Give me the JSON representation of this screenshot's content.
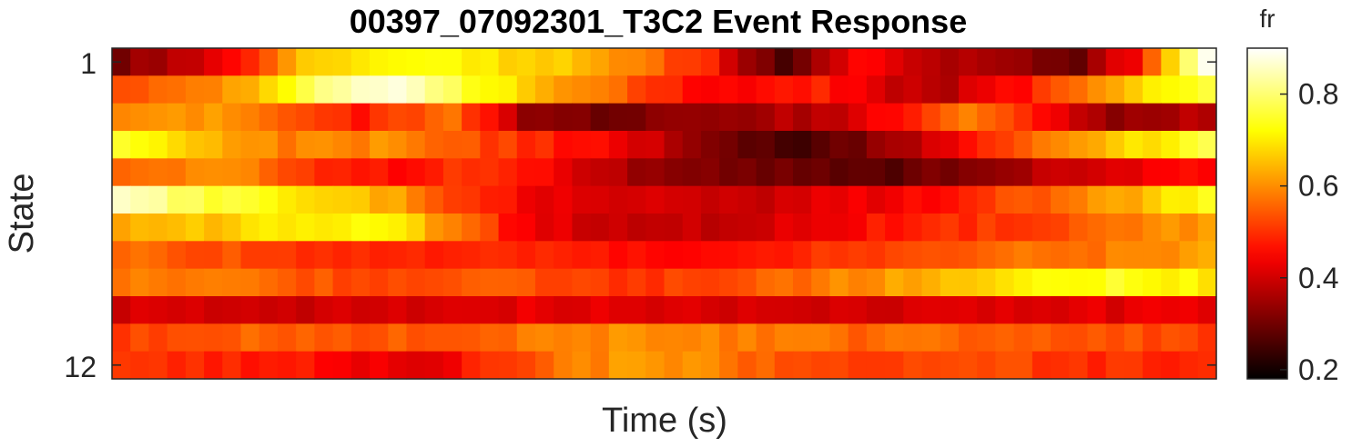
{
  "chart_data": {
    "type": "heatmap",
    "title": "00397_07092301_T3C2 Event Response",
    "xlabel": "Time (s)",
    "ylabel": "State",
    "y_tick_labels": [
      "1",
      "12"
    ],
    "x_tick_labels": [],
    "rows": 12,
    "columns": 60,
    "colormap": "hot",
    "colorbar": {
      "label": "fr",
      "ticks": [
        "0.2",
        "0.4",
        "0.6",
        "0.8"
      ],
      "tick_values": [
        0.2,
        0.4,
        0.6,
        0.8
      ],
      "range": [
        0.18,
        0.9
      ]
    },
    "row_profiles": [
      [
        [
          0,
          0.32
        ],
        [
          6,
          0.44
        ],
        [
          10,
          0.68
        ],
        [
          17,
          0.72
        ],
        [
          26,
          0.64
        ],
        [
          32,
          0.48
        ],
        [
          36,
          0.24
        ],
        [
          40,
          0.45
        ],
        [
          46,
          0.36
        ],
        [
          52,
          0.3
        ],
        [
          55,
          0.45
        ],
        [
          58,
          0.78
        ],
        [
          59,
          0.9
        ]
      ],
      [
        [
          0,
          0.54
        ],
        [
          7,
          0.62
        ],
        [
          11,
          0.82
        ],
        [
          15,
          0.88
        ],
        [
          20,
          0.72
        ],
        [
          26,
          0.58
        ],
        [
          32,
          0.45
        ],
        [
          38,
          0.48
        ],
        [
          44,
          0.36
        ],
        [
          48,
          0.44
        ],
        [
          52,
          0.56
        ],
        [
          56,
          0.72
        ],
        [
          59,
          0.76
        ]
      ],
      [
        [
          0,
          0.58
        ],
        [
          5,
          0.62
        ],
        [
          9,
          0.54
        ],
        [
          13,
          0.48
        ],
        [
          18,
          0.56
        ],
        [
          22,
          0.34
        ],
        [
          26,
          0.3
        ],
        [
          32,
          0.34
        ],
        [
          38,
          0.38
        ],
        [
          42,
          0.46
        ],
        [
          46,
          0.58
        ],
        [
          50,
          0.46
        ],
        [
          54,
          0.32
        ],
        [
          59,
          0.38
        ]
      ],
      [
        [
          0,
          0.74
        ],
        [
          4,
          0.66
        ],
        [
          9,
          0.58
        ],
        [
          15,
          0.6
        ],
        [
          20,
          0.52
        ],
        [
          27,
          0.44
        ],
        [
          32,
          0.32
        ],
        [
          37,
          0.24
        ],
        [
          41,
          0.32
        ],
        [
          45,
          0.44
        ],
        [
          50,
          0.56
        ],
        [
          55,
          0.68
        ],
        [
          59,
          0.76
        ]
      ],
      [
        [
          0,
          0.54
        ],
        [
          5,
          0.62
        ],
        [
          10,
          0.5
        ],
        [
          15,
          0.46
        ],
        [
          20,
          0.52
        ],
        [
          26,
          0.38
        ],
        [
          30,
          0.32
        ],
        [
          36,
          0.3
        ],
        [
          42,
          0.28
        ],
        [
          48,
          0.34
        ],
        [
          53,
          0.42
        ],
        [
          59,
          0.46
        ]
      ],
      [
        [
          0,
          0.86
        ],
        [
          4,
          0.78
        ],
        [
          9,
          0.7
        ],
        [
          15,
          0.62
        ],
        [
          19,
          0.5
        ],
        [
          23,
          0.42
        ],
        [
          30,
          0.4
        ],
        [
          36,
          0.4
        ],
        [
          42,
          0.44
        ],
        [
          48,
          0.52
        ],
        [
          52,
          0.58
        ],
        [
          56,
          0.66
        ],
        [
          59,
          0.74
        ]
      ],
      [
        [
          0,
          0.62
        ],
        [
          5,
          0.66
        ],
        [
          10,
          0.72
        ],
        [
          15,
          0.7
        ],
        [
          18,
          0.58
        ],
        [
          22,
          0.44
        ],
        [
          28,
          0.38
        ],
        [
          34,
          0.4
        ],
        [
          40,
          0.46
        ],
        [
          46,
          0.5
        ],
        [
          52,
          0.54
        ],
        [
          59,
          0.62
        ]
      ],
      [
        [
          0,
          0.56
        ],
        [
          8,
          0.52
        ],
        [
          14,
          0.48
        ],
        [
          20,
          0.5
        ],
        [
          28,
          0.46
        ],
        [
          34,
          0.48
        ],
        [
          42,
          0.52
        ],
        [
          48,
          0.56
        ],
        [
          54,
          0.58
        ],
        [
          59,
          0.62
        ]
      ],
      [
        [
          0,
          0.58
        ],
        [
          8,
          0.56
        ],
        [
          14,
          0.52
        ],
        [
          20,
          0.54
        ],
        [
          28,
          0.5
        ],
        [
          34,
          0.54
        ],
        [
          40,
          0.6
        ],
        [
          46,
          0.66
        ],
        [
          50,
          0.72
        ],
        [
          54,
          0.74
        ],
        [
          59,
          0.7
        ]
      ],
      [
        [
          0,
          0.4
        ],
        [
          10,
          0.4
        ],
        [
          20,
          0.42
        ],
        [
          30,
          0.42
        ],
        [
          40,
          0.4
        ],
        [
          50,
          0.42
        ],
        [
          59,
          0.42
        ]
      ],
      [
        [
          0,
          0.52
        ],
        [
          8,
          0.56
        ],
        [
          14,
          0.54
        ],
        [
          20,
          0.56
        ],
        [
          28,
          0.6
        ],
        [
          34,
          0.58
        ],
        [
          40,
          0.56
        ],
        [
          48,
          0.56
        ],
        [
          54,
          0.54
        ],
        [
          59,
          0.52
        ]
      ],
      [
        [
          0,
          0.5
        ],
        [
          6,
          0.48
        ],
        [
          12,
          0.46
        ],
        [
          16,
          0.4
        ],
        [
          20,
          0.5
        ],
        [
          24,
          0.58
        ],
        [
          29,
          0.62
        ],
        [
          34,
          0.56
        ],
        [
          40,
          0.52
        ],
        [
          46,
          0.54
        ],
        [
          52,
          0.5
        ],
        [
          59,
          0.48
        ]
      ]
    ]
  }
}
